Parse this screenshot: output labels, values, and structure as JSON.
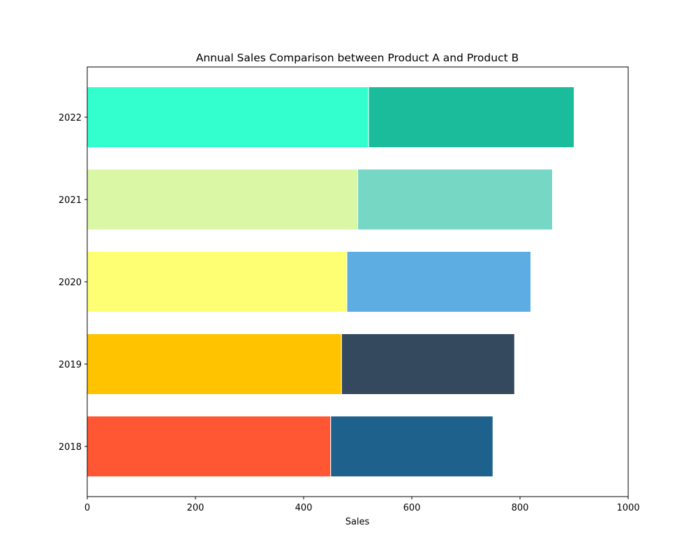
{
  "chart_data": {
    "type": "bar",
    "orientation": "horizontal",
    "stacked": true,
    "title": "Annual Sales Comparison between Product A and Product B",
    "xlabel": "Sales",
    "ylabel": "",
    "xlim": [
      0,
      1000
    ],
    "xticks": [
      "0",
      "200",
      "400",
      "600",
      "800",
      "1000"
    ],
    "categories": [
      "2018",
      "2019",
      "2020",
      "2021",
      "2022"
    ],
    "grid": false,
    "legend": "none",
    "series": [
      {
        "values": [
          450,
          470,
          480,
          500,
          520
        ],
        "colors": [
          "#FF5733",
          "#FFC300",
          "#FFFF73",
          "#DAF7A6",
          "#33FFCE"
        ]
      },
      {
        "values": [
          300,
          320,
          340,
          360,
          380
        ],
        "colors": [
          "#1F618D",
          "#34495E",
          "#5DADE2",
          "#76D7C4",
          "#1ABC9C"
        ]
      }
    ]
  }
}
